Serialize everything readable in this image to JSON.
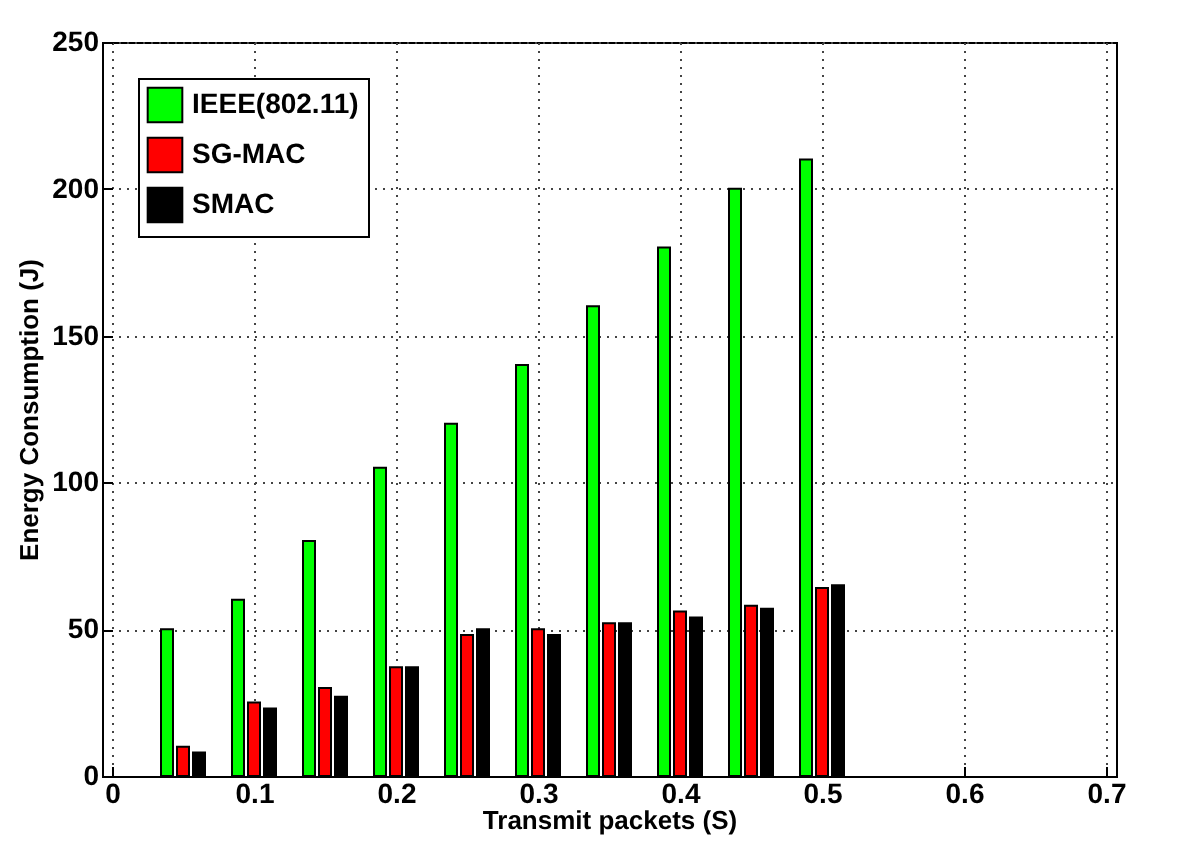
{
  "chart_data": {
    "type": "bar",
    "xlabel": "Transmit packets (S)",
    "ylabel": "Energy Consumption (J)",
    "x": [
      0.05,
      0.1,
      0.15,
      0.2,
      0.25,
      0.3,
      0.35,
      0.4,
      0.45,
      0.5
    ],
    "series": [
      {
        "name": "IEEE(802.11)",
        "color": "#00ff00",
        "values": [
          50,
          60,
          80,
          105,
          120,
          140,
          160,
          180,
          200,
          210
        ]
      },
      {
        "name": "SG-MAC",
        "color": "#ff0000",
        "values": [
          10,
          25,
          30,
          37,
          48,
          50,
          52,
          56,
          58,
          64
        ]
      },
      {
        "name": "SMAC",
        "color": "#000000",
        "values": [
          8,
          23,
          27,
          37,
          50,
          48,
          52,
          54,
          57,
          65
        ]
      }
    ],
    "xlim": [
      0,
      0.7
    ],
    "xticks": [
      0,
      0.1,
      0.2,
      0.3,
      0.4,
      0.5,
      0.6,
      0.7
    ],
    "ylim": [
      0,
      250
    ],
    "yticks": [
      0,
      50,
      100,
      150,
      200,
      250
    ],
    "grid": true,
    "legend": "top left"
  }
}
